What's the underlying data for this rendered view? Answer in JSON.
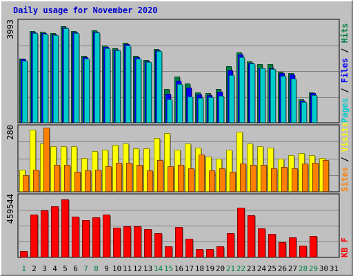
{
  "chart_data": {
    "type": "bar",
    "title": "Daily usage for November 2020",
    "categories": [
      "1",
      "2",
      "3",
      "4",
      "5",
      "6",
      "7",
      "8",
      "9",
      "10",
      "11",
      "12",
      "13",
      "14",
      "15",
      "16",
      "17",
      "18",
      "19",
      "20",
      "21",
      "22",
      "23",
      "24",
      "25",
      "26",
      "27",
      "28",
      "29",
      "30",
      "31"
    ],
    "weekend_days": [
      "1",
      "7",
      "8",
      "14",
      "15",
      "21",
      "22",
      "28",
      "29"
    ],
    "panels": [
      {
        "id": "hits",
        "ymax": 3993,
        "max_label": "3993",
        "right_labels": [
          {
            "text": "Pages",
            "color": "#00cccc"
          },
          {
            "text": " / ",
            "color": "#000000"
          },
          {
            "text": "Files",
            "color": "#0000ff"
          },
          {
            "text": " / ",
            "color": "#000000"
          },
          {
            "text": "Hits",
            "color": "#008040"
          }
        ],
        "series": [
          {
            "name": "Hits",
            "color": "#008040",
            "values": [
              2520,
              3600,
              3550,
              3510,
              3780,
              3580,
              2620,
              3620,
              3010,
              2910,
              3120,
              2610,
              2460,
              2890,
              1310,
              1820,
              1530,
              1200,
              1170,
              1330,
              2200,
              2740,
              2410,
              2280,
              2280,
              2000,
              1950,
              920,
              1200,
              null,
              null
            ]
          },
          {
            "name": "Files",
            "color": "#0000ff",
            "values": [
              2470,
              3540,
              3500,
              3460,
              3730,
              3530,
              2570,
              3570,
              2960,
              2860,
              3070,
              2560,
              2410,
              2840,
              1120,
              1640,
              1380,
              1100,
              1070,
              1210,
              2050,
              2660,
              2350,
              2140,
              2130,
              1940,
              1890,
              860,
              1160,
              null,
              null
            ]
          },
          {
            "name": "Pages",
            "color": "#00cccc",
            "values": [
              2420,
              3500,
              3470,
              3420,
              3690,
              3510,
              2520,
              3540,
              2920,
              2820,
              3020,
              2510,
              2370,
              2800,
              920,
              1500,
              1020,
              970,
              990,
              1060,
              1850,
              2560,
              2330,
              2140,
              2110,
              1830,
              1730,
              820,
              1070,
              null,
              null
            ]
          }
        ]
      },
      {
        "id": "visits",
        "ymax": 280,
        "max_label": "280",
        "right_labels": [
          {
            "text": "Sites",
            "color": "#ff8000"
          },
          {
            "text": " / ",
            "color": "#000000"
          },
          {
            "text": "Visits",
            "color": "#ffff00"
          }
        ],
        "series": [
          {
            "name": "Visits",
            "color": "#ffff00",
            "values": [
              95,
              265,
              205,
              195,
              195,
              195,
              145,
              175,
              180,
              200,
              205,
              185,
              185,
              230,
              250,
              180,
              205,
              190,
              150,
              140,
              180,
              255,
              205,
              195,
              190,
              140,
              155,
              165,
              155,
              145,
              null
            ]
          },
          {
            "name": "Sites",
            "color": "#ff8000",
            "values": [
              70,
              95,
              275,
              115,
              115,
              85,
              90,
              95,
              110,
              125,
              125,
              115,
              90,
              135,
              110,
              115,
              100,
              160,
              90,
              100,
              85,
              120,
              115,
              115,
              100,
              105,
              100,
              120,
              125,
              135,
              null
            ]
          }
        ]
      },
      {
        "id": "kbytes",
        "ymax": 459544,
        "max_label": "459544",
        "right_labels": [
          {
            "text": "KB",
            "color": "#ff0000"
          },
          {
            "text": " ",
            "color": "#000000"
          },
          {
            "text": "F",
            "color": "#ff0000"
          }
        ],
        "series": [
          {
            "name": "KB F",
            "color": "#ff0000",
            "values": [
              45000,
              317000,
              345000,
              380000,
              428000,
              300000,
              276000,
              297000,
              315000,
              219000,
              228000,
              229000,
              210000,
              178000,
              80000,
              223000,
              138000,
              60000,
              61000,
              80000,
              179000,
              369000,
              309000,
              217000,
              174000,
              113000,
              149000,
              89000,
              159000,
              null,
              null
            ]
          }
        ]
      }
    ]
  }
}
